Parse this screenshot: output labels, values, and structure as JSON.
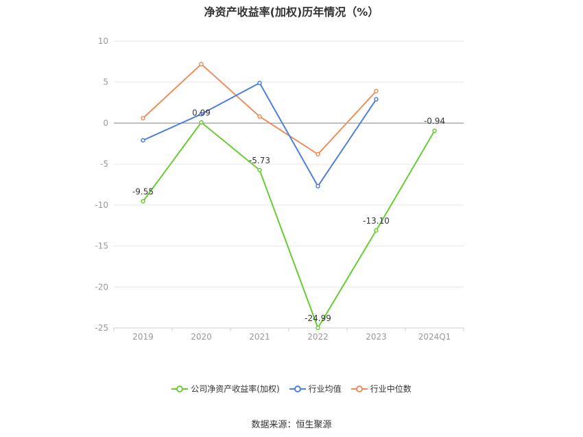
{
  "title": "净资产收益率(加权)历年情况（%）",
  "source": "数据来源：恒生聚源",
  "chart_data": {
    "type": "line",
    "categories": [
      "2019",
      "2020",
      "2021",
      "2022",
      "2023",
      "2024Q1"
    ],
    "ylim": [
      -25,
      10
    ],
    "yticks": [
      10,
      5,
      0,
      -5,
      -10,
      -15,
      -20,
      -25
    ],
    "grid": true,
    "legend_position": "bottom",
    "series": [
      {
        "name": "公司净资产收益率(加权)",
        "color": "#66cc33",
        "values": [
          -9.55,
          0.09,
          -5.73,
          -24.99,
          -13.1,
          -0.94
        ],
        "labels": [
          "-9.55",
          "0.09",
          "-5.73",
          "-24.99",
          "-13.10",
          "-0.94"
        ]
      },
      {
        "name": "行业均值",
        "color": "#4a7fdb",
        "values": [
          -2.1,
          1.1,
          4.9,
          -7.7,
          2.9,
          null
        ]
      },
      {
        "name": "行业中位数",
        "color": "#f08c5a",
        "values": [
          0.6,
          7.2,
          0.8,
          -3.8,
          3.9,
          null
        ]
      }
    ]
  }
}
